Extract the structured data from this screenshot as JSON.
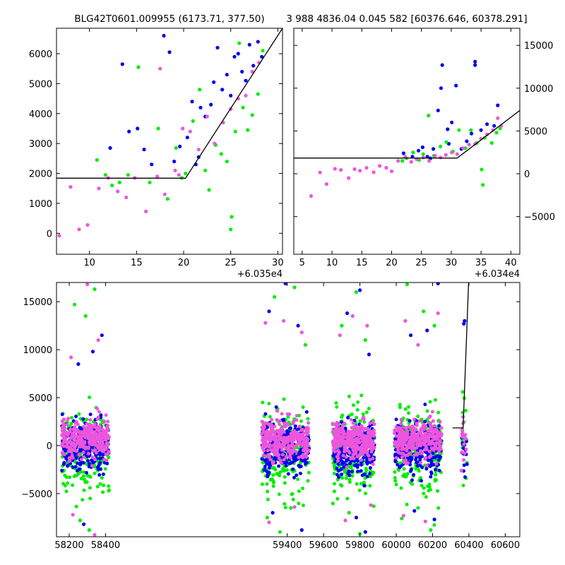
{
  "chart_data": [
    {
      "type": "scatter",
      "title": "BLG42T0601.009955 (6173.71, 377.50)",
      "xlabel": "",
      "ylabel": "",
      "x_offset_label": "+6.035e4",
      "xlim": [
        6.5,
        30.5
      ],
      "ylim": [
        -700,
        6850
      ],
      "xticks": [
        10,
        15,
        20,
        25,
        30
      ],
      "xtick_labels": [
        "10",
        "15",
        "20",
        "25",
        "30"
      ],
      "yticks": [
        0,
        1000,
        2000,
        3000,
        4000,
        5000,
        6000
      ],
      "ytick_labels": [
        "0",
        "1000",
        "2000",
        "3000",
        "4000",
        "5000",
        "6000"
      ],
      "ytick_side": "left",
      "grid": false,
      "series": [
        {
          "color": "#0000ee",
          "points": [
            [
              13.5,
              5650
            ],
            [
              14.2,
              3400
            ],
            [
              15.1,
              3500
            ],
            [
              15.8,
              2800
            ],
            [
              17.9,
              6600
            ],
            [
              18.5,
              6050
            ],
            [
              19.0,
              2400
            ],
            [
              19.6,
              2900
            ],
            [
              20.4,
              3200
            ],
            [
              20.9,
              4400
            ],
            [
              21.3,
              2300
            ],
            [
              21.8,
              4200
            ],
            [
              22.3,
              3900
            ],
            [
              22.9,
              4300
            ],
            [
              23.2,
              5050
            ],
            [
              23.6,
              6200
            ],
            [
              24.1,
              4800
            ],
            [
              24.6,
              5300
            ],
            [
              25.0,
              4600
            ],
            [
              25.4,
              5900
            ],
            [
              25.8,
              6000
            ],
            [
              26.2,
              5400
            ],
            [
              26.6,
              5100
            ],
            [
              27.0,
              6300
            ],
            [
              27.4,
              5600
            ],
            [
              27.9,
              6400
            ],
            [
              28.3,
              5900
            ],
            [
              12.2,
              2850
            ],
            [
              16.6,
              2300
            ],
            [
              21.6,
              2550
            ]
          ]
        },
        {
          "color": "#00ee00",
          "points": [
            [
              10.8,
              2450
            ],
            [
              11.7,
              1950
            ],
            [
              12.4,
              1600
            ],
            [
              13.2,
              1700
            ],
            [
              14.1,
              1950
            ],
            [
              15.2,
              5550
            ],
            [
              16.4,
              1700
            ],
            [
              17.3,
              3500
            ],
            [
              18.3,
              1150
            ],
            [
              19.2,
              2850
            ],
            [
              20.2,
              2000
            ],
            [
              21.0,
              3750
            ],
            [
              21.7,
              4800
            ],
            [
              22.3,
              2100
            ],
            [
              22.7,
              1450
            ],
            [
              23.4,
              2950
            ],
            [
              24.0,
              2650
            ],
            [
              24.6,
              2400
            ],
            [
              25.1,
              550
            ],
            [
              25.5,
              3400
            ],
            [
              25.9,
              6350
            ],
            [
              26.3,
              4200
            ],
            [
              26.8,
              3450
            ],
            [
              27.3,
              3950
            ],
            [
              27.9,
              4650
            ],
            [
              28.4,
              6100
            ],
            [
              25.0,
              130
            ],
            [
              19.8,
              1850
            ]
          ]
        },
        {
          "color": "#ee55dd",
          "points": [
            [
              6.8,
              -80
            ],
            [
              8.0,
              1550
            ],
            [
              8.9,
              130
            ],
            [
              9.8,
              280
            ],
            [
              11.0,
              1500
            ],
            [
              12.0,
              1850
            ],
            [
              13.0,
              1400
            ],
            [
              13.9,
              1200
            ],
            [
              14.8,
              1850
            ],
            [
              16.0,
              730
            ],
            [
              17.2,
              1900
            ],
            [
              18.0,
              1300
            ],
            [
              19.1,
              2100
            ],
            [
              19.9,
              3500
            ],
            [
              20.7,
              3400
            ],
            [
              21.6,
              2800
            ],
            [
              22.5,
              3900
            ],
            [
              23.3,
              3000
            ],
            [
              24.2,
              3700
            ],
            [
              25.0,
              4150
            ],
            [
              25.8,
              4500
            ],
            [
              26.6,
              4600
            ],
            [
              27.3,
              5400
            ],
            [
              28.0,
              5700
            ],
            [
              17.5,
              5500
            ],
            [
              19.5,
              1950
            ]
          ]
        }
      ],
      "model": [
        [
          6.5,
          1840
        ],
        [
          20.2,
          1840
        ],
        [
          30.5,
          6850
        ]
      ]
    },
    {
      "type": "scatter",
      "title": "3 988 4836.04 0.045 582 [60376.646, 60378.291]",
      "xlabel": "",
      "ylabel": "",
      "x_offset_label": "+6.034e4",
      "xlim": [
        3.6,
        41.5
      ],
      "ylim": [
        -9400,
        17000
      ],
      "xticks": [
        5,
        10,
        15,
        20,
        25,
        30,
        35,
        40
      ],
      "xtick_labels": [
        "5",
        "10",
        "15",
        "20",
        "25",
        "30",
        "35",
        "40"
      ],
      "yticks": [
        -5000,
        0,
        5000,
        10000,
        15000
      ],
      "ytick_labels": [
        "−5000",
        "0",
        "5000",
        "10000",
        "15000"
      ],
      "ytick_side": "right",
      "grid": false,
      "series": [
        {
          "color": "#0000ee",
          "points": [
            [
              22.0,
              2400
            ],
            [
              23.5,
              2000
            ],
            [
              24.5,
              2700
            ],
            [
              25.2,
              3100
            ],
            [
              26.0,
              2000
            ],
            [
              27.0,
              2900
            ],
            [
              27.8,
              7400
            ],
            [
              28.5,
              12700
            ],
            [
              28.3,
              10000
            ],
            [
              29.4,
              5200
            ],
            [
              30.1,
              6000
            ],
            [
              30.8,
              10300
            ],
            [
              31.7,
              2900
            ],
            [
              32.6,
              3800
            ],
            [
              33.4,
              4700
            ],
            [
              34.0,
              13100
            ],
            [
              34.0,
              12700
            ],
            [
              35.0,
              5100
            ],
            [
              36.0,
              5800
            ],
            [
              37.2,
              5600
            ],
            [
              37.8,
              8000
            ],
            [
              29.6,
              3500
            ],
            [
              26.5,
              1800
            ]
          ]
        },
        {
          "color": "#00ee00",
          "points": [
            [
              22.5,
              1800
            ],
            [
              23.6,
              2500
            ],
            [
              24.6,
              1600
            ],
            [
              25.3,
              2300
            ],
            [
              26.2,
              6800
            ],
            [
              27.1,
              2100
            ],
            [
              28.2,
              3200
            ],
            [
              29.2,
              3700
            ],
            [
              30.3,
              2600
            ],
            [
              31.3,
              5100
            ],
            [
              32.4,
              3000
            ],
            [
              33.3,
              5100
            ],
            [
              34.3,
              3600
            ],
            [
              35.1,
              500
            ],
            [
              35.3,
              -1300
            ],
            [
              35.6,
              4200
            ],
            [
              36.8,
              3600
            ],
            [
              37.6,
              4800
            ],
            [
              38.2,
              5300
            ],
            [
              21.8,
              1500
            ]
          ]
        },
        {
          "color": "#ee55dd",
          "points": [
            [
              6.5,
              -2600
            ],
            [
              8.0,
              150
            ],
            [
              9.1,
              -1200
            ],
            [
              10.5,
              580
            ],
            [
              11.5,
              450
            ],
            [
              12.8,
              -500
            ],
            [
              13.8,
              540
            ],
            [
              14.7,
              360
            ],
            [
              15.8,
              700
            ],
            [
              17.0,
              180
            ],
            [
              18.0,
              920
            ],
            [
              19.1,
              710
            ],
            [
              20.0,
              290
            ],
            [
              21.1,
              1500
            ],
            [
              22.3,
              2000
            ],
            [
              23.3,
              1400
            ],
            [
              24.2,
              1700
            ],
            [
              25.3,
              1900
            ],
            [
              26.3,
              1500
            ],
            [
              27.3,
              2100
            ],
            [
              28.2,
              1900
            ],
            [
              29.1,
              2200
            ],
            [
              30.1,
              2500
            ],
            [
              31.0,
              2300
            ],
            [
              32.0,
              3000
            ],
            [
              33.0,
              3400
            ],
            [
              34.0,
              3500
            ],
            [
              35.0,
              4100
            ],
            [
              36.0,
              4600
            ],
            [
              37.0,
              5100
            ],
            [
              37.8,
              6500
            ],
            [
              38.4,
              5600
            ]
          ]
        }
      ],
      "model": [
        [
          3.6,
          1840
        ],
        [
          31.0,
          1840
        ],
        [
          41.5,
          7400
        ]
      ]
    },
    {
      "type": "scatter",
      "title": "",
      "xlabel": "",
      "ylabel": "",
      "x_offset_label": "",
      "xlim": [
        58130,
        60680
      ],
      "ylim": [
        -9500,
        17000
      ],
      "xticks": [
        58200,
        58400,
        59400,
        59600,
        59800,
        60000,
        60200,
        60400,
        60600
      ],
      "xtick_labels": [
        "58200",
        "58400",
        "59400",
        "59600",
        "59800",
        "60000",
        "60200",
        "60400",
        "60600"
      ],
      "yticks": [
        -5000,
        0,
        5000,
        10000,
        15000
      ],
      "ytick_labels": [
        "−5000",
        "0",
        "5000",
        "10000",
        "15000"
      ],
      "ytick_side": "left",
      "grid": false,
      "seasons": [
        {
          "start": 58160,
          "end": 58420
        },
        {
          "start": 59260,
          "end": 59520
        },
        {
          "start": 59650,
          "end": 59880
        },
        {
          "start": 59990,
          "end": 60250
        },
        {
          "start": 60360,
          "end": 60390
        }
      ],
      "series": [
        {
          "color": "#00ee00",
          "points": [
            [
              58230,
              14700
            ],
            [
              58290,
              13500
            ],
            [
              58340,
              16300
            ],
            [
              59330,
              15500
            ],
            [
              59440,
              16500
            ],
            [
              59500,
              10500
            ],
            [
              59700,
              12500
            ],
            [
              59780,
              16000
            ],
            [
              59830,
              11000
            ],
            [
              60060,
              16800
            ],
            [
              60150,
              14000
            ],
            [
              60210,
              12500
            ],
            [
              58260,
              -7800
            ],
            [
              58310,
              -8800
            ],
            [
              59290,
              -7500
            ],
            [
              59360,
              -9000
            ],
            [
              59420,
              -6500
            ],
            [
              59740,
              -7000
            ],
            [
              59800,
              -9200
            ],
            [
              60030,
              -7600
            ],
            [
              60120,
              -6500
            ],
            [
              60190,
              -8800
            ],
            [
              60366,
              5600
            ]
          ]
        },
        {
          "color": "#0000ee",
          "points": [
            [
              58250,
              8500
            ],
            [
              58330,
              9800
            ],
            [
              58380,
              11500
            ],
            [
              59300,
              14000
            ],
            [
              59390,
              16900
            ],
            [
              59460,
              12500
            ],
            [
              59730,
              13800
            ],
            [
              59800,
              16200
            ],
            [
              59850,
              9500
            ],
            [
              60080,
              11500
            ],
            [
              60170,
              12000
            ],
            [
              60230,
              16900
            ],
            [
              60376,
              13000
            ],
            [
              60372,
              12700
            ],
            [
              58280,
              -8200
            ],
            [
              59320,
              -7000
            ],
            [
              59480,
              -8800
            ],
            [
              59780,
              -7500
            ],
            [
              59830,
              -9000
            ],
            [
              60100,
              -6800
            ],
            [
              60210,
              -7700
            ]
          ]
        },
        {
          "color": "#ee55dd",
          "points": [
            [
              58210,
              9200
            ],
            [
              58300,
              16800
            ],
            [
              58360,
              11000
            ],
            [
              59280,
              12800
            ],
            [
              59380,
              13000
            ],
            [
              59480,
              11800
            ],
            [
              59690,
              11500
            ],
            [
              59760,
              13500
            ],
            [
              59840,
              12500
            ],
            [
              60050,
              13000
            ],
            [
              60120,
              10500
            ],
            [
              60230,
              13800
            ],
            [
              60368,
              3000
            ],
            [
              60358,
              -2600
            ],
            [
              58220,
              -7200
            ],
            [
              58340,
              -9300
            ],
            [
              59300,
              -8000
            ],
            [
              59440,
              -6400
            ],
            [
              59720,
              -7800
            ],
            [
              59860,
              -6200
            ],
            [
              60040,
              -7300
            ],
            [
              60160,
              -7900
            ]
          ]
        }
      ],
      "model": [
        [
          60310,
          1840
        ],
        [
          60368,
          1840
        ],
        [
          60398,
          17000
        ]
      ]
    }
  ]
}
